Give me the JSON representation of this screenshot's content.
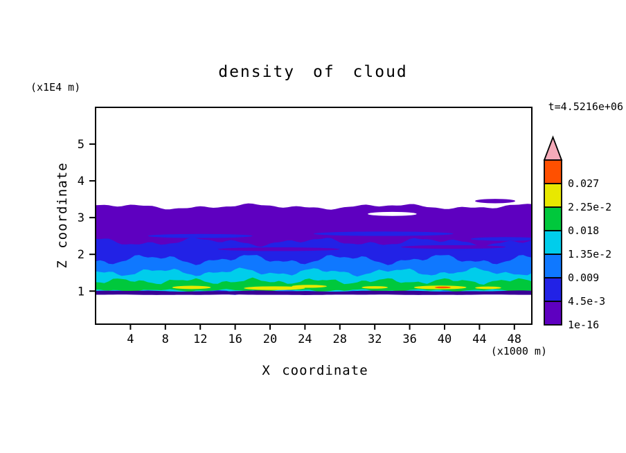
{
  "chart_data": {
    "type": "filled_contour",
    "title": "density of cloud",
    "xlabel": "X coordinate",
    "x_unit": "(x1000 m)",
    "ylabel": "Z coordinate",
    "y_unit": "(x1E4 m)",
    "annotation": "t=4.5216e+06",
    "x_ticks": [
      4,
      8,
      12,
      16,
      20,
      24,
      28,
      32,
      36,
      40,
      44,
      48
    ],
    "y_ticks": [
      1,
      2,
      3,
      4,
      5
    ],
    "x_range": [
      0,
      50
    ],
    "y_range": [
      0.1,
      6.0
    ],
    "grid": false,
    "levels": [
      "1e-16",
      "4.5e-3",
      "0.009",
      "1.35e-2",
      "0.018",
      "2.25e-2",
      "0.027"
    ],
    "colorbar": {
      "labels_bottom_to_top": [
        "1e-16",
        "4.5e-3",
        "0.009",
        "1.35e-2",
        "0.018",
        "2.25e-2",
        "0.027"
      ],
      "segment_colors_bottom_to_top": [
        "#5e00c0",
        "#2222e6",
        "#0f78ff",
        "#00cdeb",
        "#00c83c",
        "#e8e800",
        "#ff5000"
      ],
      "arrow_color": "#f5aab9"
    },
    "bands": [
      {
        "name": "ge-1e-16",
        "color": "#5e00c0",
        "z_top": 3.3,
        "z_bottom": 0.93,
        "wiggle": [
          [
            0.045,
            16.0,
            0.8
          ],
          [
            0.03,
            6.2,
            2.4
          ],
          [
            0.015,
            2.7,
            4.9
          ]
        ]
      },
      {
        "name": "ge-4.5e-3",
        "color": "#2222e6",
        "z_top": 2.34,
        "z_bottom": 0.95,
        "wiggle": [
          [
            0.07,
            13.0,
            1.9
          ],
          [
            0.045,
            5.1,
            0.4
          ],
          [
            0.02,
            2.3,
            3.3
          ]
        ]
      },
      {
        "name": "ge-0.009",
        "color": "#0f78ff",
        "z_top": 1.86,
        "z_bottom": 0.97,
        "wiggle": [
          [
            0.09,
            11.0,
            4.2
          ],
          [
            0.05,
            4.4,
            1.2
          ],
          [
            0.025,
            2.0,
            5.6
          ]
        ]
      },
      {
        "name": "ge-1.35e-2",
        "color": "#00cdeb",
        "z_top": 1.52,
        "z_bottom": 0.99,
        "wiggle": [
          [
            0.07,
            9.0,
            2.6
          ],
          [
            0.04,
            3.8,
            5.0
          ],
          [
            0.02,
            1.8,
            1.1
          ]
        ]
      },
      {
        "name": "ge-0.018",
        "color": "#00c83c",
        "z_top": 1.27,
        "z_bottom": 1.02,
        "wiggle": [
          [
            0.05,
            7.5,
            5.3
          ],
          [
            0.035,
            3.1,
            2.8
          ],
          [
            0.015,
            1.6,
            0.2
          ]
        ]
      }
    ],
    "patches": [
      {
        "color": "#2222e6",
        "x": 12.0,
        "z": 2.5,
        "rx": 6.0,
        "rz": 0.055
      },
      {
        "color": "#2222e6",
        "x": 33.0,
        "z": 2.56,
        "rx": 8.0,
        "rz": 0.06
      },
      {
        "color": "#2222e6",
        "x": 47.0,
        "z": 2.42,
        "rx": 4.0,
        "rz": 0.05
      },
      {
        "color": "#5e00c0",
        "x": 21.0,
        "z": 2.14,
        "rx": 7.0,
        "rz": 0.05
      },
      {
        "color": "#5e00c0",
        "x": 41.0,
        "z": 2.2,
        "rx": 6.0,
        "rz": 0.05
      },
      {
        "color": "#ffffff",
        "x": 34.0,
        "z": 3.1,
        "rx": 2.8,
        "rz": 0.055
      },
      {
        "color": "#5e00c0",
        "x": 45.8,
        "z": 3.45,
        "rx": 2.3,
        "rz": 0.06
      },
      {
        "color": "#e8e800",
        "x": 11.0,
        "z": 1.1,
        "rx": 2.2,
        "rz": 0.045
      },
      {
        "color": "#e8e800",
        "x": 20.5,
        "z": 1.08,
        "rx": 3.5,
        "rz": 0.05
      },
      {
        "color": "#e8e800",
        "x": 24.5,
        "z": 1.13,
        "rx": 2.0,
        "rz": 0.04
      },
      {
        "color": "#e8e800",
        "x": 32.0,
        "z": 1.1,
        "rx": 1.5,
        "rz": 0.035
      },
      {
        "color": "#e8e800",
        "x": 39.5,
        "z": 1.1,
        "rx": 3.0,
        "rz": 0.05
      },
      {
        "color": "#e8e800",
        "x": 45.0,
        "z": 1.09,
        "rx": 1.5,
        "rz": 0.035
      },
      {
        "color": "#ff5000",
        "x": 39.8,
        "z": 1.1,
        "rx": 0.9,
        "rz": 0.025
      }
    ],
    "base_band": {
      "name": "cloud-base",
      "color": "#3a0096",
      "z_top": 1.0,
      "z_bottom": 0.9,
      "wiggle": [
        [
          0.01,
          15.0,
          0.0
        ],
        [
          0.006,
          6.0,
          1.0
        ]
      ]
    }
  },
  "colors": {
    "axis": "#000000",
    "background": "#ffffff"
  }
}
